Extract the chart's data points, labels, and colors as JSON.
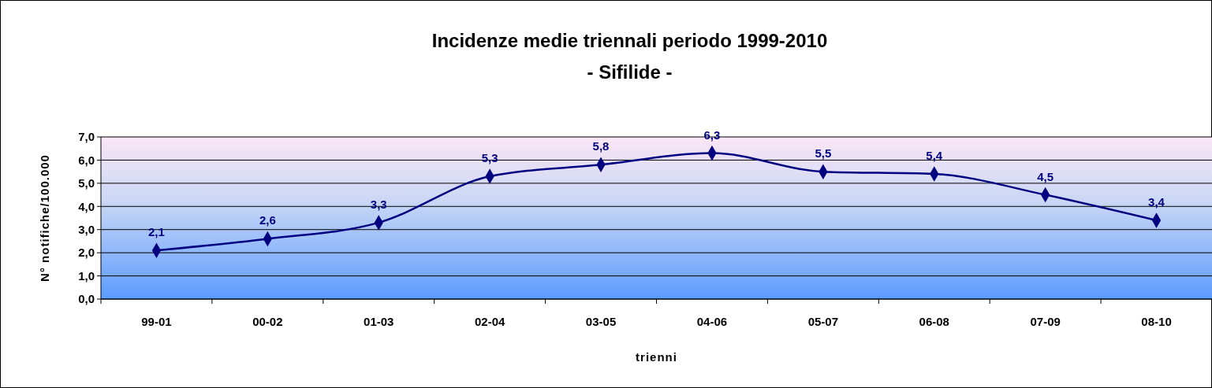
{
  "chart_data": {
    "type": "line",
    "title": "Incidenze medie triennali periodo 1999-2010",
    "subtitle": "- Sifilide -",
    "xlabel": "trienni",
    "ylabel": "N° notifiche/100.000",
    "categories": [
      "99-01",
      "00-02",
      "01-03",
      "02-04",
      "03-05",
      "04-06",
      "05-07",
      "06-08",
      "07-09",
      "08-10"
    ],
    "series": [
      {
        "color": "#000080",
        "values": [
          2.1,
          2.6,
          3.3,
          5.3,
          5.8,
          6.3,
          5.5,
          5.4,
          4.5,
          3.4
        ],
        "value_labels": [
          "2,1",
          "2,6",
          "3,3",
          "5,3",
          "5,8",
          "6,3",
          "5,5",
          "5,4",
          "4,5",
          "3,4"
        ]
      }
    ],
    "ylim": [
      0,
      7
    ],
    "yticks": [
      {
        "value": 0,
        "label": "0,0"
      },
      {
        "value": 1,
        "label": "1,0"
      },
      {
        "value": 2,
        "label": "2,0"
      },
      {
        "value": 3,
        "label": "3,0"
      },
      {
        "value": 4,
        "label": "4,0"
      },
      {
        "value": 5,
        "label": "5,0"
      },
      {
        "value": 6,
        "label": "6,0"
      },
      {
        "value": 7,
        "label": "7,0"
      }
    ],
    "grid": "y",
    "marker": "diamond",
    "line_style": "solid"
  }
}
